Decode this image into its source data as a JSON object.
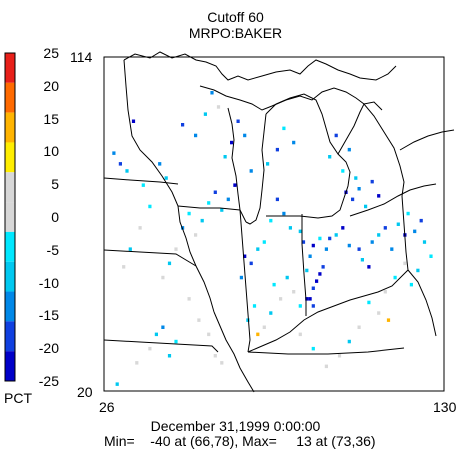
{
  "title": "Cutoff 60",
  "subtitle": "MRPO:BAKER",
  "y_axis": {
    "top": "114",
    "bottom": "20"
  },
  "x_axis": {
    "left": "26",
    "right": "130"
  },
  "footer": {
    "date": "December 31,1999 0:00:00",
    "stats": "Min=    -40 at (66,78), Max=     13 at (73,36)"
  },
  "colorbar": {
    "unit": "PCT",
    "labels": [
      "25",
      "20",
      "15",
      "10",
      "5",
      "0",
      "-5",
      "-10",
      "-15",
      "-20",
      "-25"
    ],
    "colors": [
      "#e8201a",
      "#ff6a00",
      "#ffb400",
      "#ffee00",
      "#d8d8d8",
      "#d8d8d8",
      "#00e8ff",
      "#00c8f0",
      "#0088e8",
      "#1040e0",
      "#0000c8"
    ]
  },
  "map": {
    "grid": {
      "col_range": [
        26,
        130
      ],
      "row_range": [
        20,
        114
      ]
    },
    "cells": [
      [
        88,
        46,
        "#0000c8"
      ],
      [
        89,
        46,
        "#0000c8"
      ],
      [
        90,
        44,
        "#1040e0"
      ],
      [
        90,
        49,
        "#1040e0"
      ],
      [
        91,
        51,
        "#0000c8"
      ],
      [
        92,
        53,
        "#0000c8"
      ],
      [
        93,
        55,
        "#1040e0"
      ],
      [
        88,
        54,
        "#00c8f0"
      ],
      [
        89,
        58,
        "#0088e8"
      ],
      [
        90,
        61,
        "#0000c8"
      ],
      [
        87,
        62,
        "#1040e0"
      ],
      [
        86,
        65,
        "#00c8f0"
      ],
      [
        92,
        63,
        "#00e8ff"
      ],
      [
        94,
        60,
        "#0088e8"
      ],
      [
        95,
        63,
        "#1040e0"
      ],
      [
        97,
        64,
        "#00c8f0"
      ],
      [
        99,
        66,
        "#0000c8"
      ],
      [
        101,
        61,
        "#0088e8"
      ],
      [
        104,
        60,
        "#1040e0"
      ],
      [
        105,
        57,
        "#00c8f0"
      ],
      [
        107,
        55,
        "#0000c8"
      ],
      [
        108,
        62,
        "#0088e8"
      ],
      [
        110,
        64,
        "#00c8f0"
      ],
      [
        112,
        66,
        "#1040e0"
      ],
      [
        114,
        60,
        "#0088e8"
      ],
      [
        116,
        67,
        "#00c8f0"
      ],
      [
        118,
        64,
        "#0000c8"
      ],
      [
        119,
        70,
        "#00e8ff"
      ],
      [
        121,
        65,
        "#0088e8"
      ],
      [
        123,
        68,
        "#1040e0"
      ],
      [
        124,
        62,
        "#00c8f0"
      ],
      [
        126,
        58,
        "#00e8ff"
      ],
      [
        100,
        76,
        "#0000c8"
      ],
      [
        102,
        74,
        "#1040e0"
      ],
      [
        104,
        77,
        "#0088e8"
      ],
      [
        106,
        72,
        "#00c8f0"
      ],
      [
        108,
        79,
        "#1040e0"
      ],
      [
        110,
        75,
        "#0000c8"
      ],
      [
        66,
        78,
        "#0000c8"
      ],
      [
        64,
        74,
        "#0088e8"
      ],
      [
        62,
        71,
        "#00c8f0"
      ],
      [
        60,
        76,
        "#1040e0"
      ],
      [
        58,
        73,
        "#00e8ff"
      ],
      [
        56,
        68,
        "#00c8f0"
      ],
      [
        54,
        64,
        "#d8d8d8"
      ],
      [
        52,
        70,
        "#00e8ff"
      ],
      [
        50,
        66,
        "#0088e8"
      ],
      [
        48,
        60,
        "#d8d8d8"
      ],
      [
        46,
        56,
        "#00c8f0"
      ],
      [
        44,
        52,
        "#d8d8d8"
      ],
      [
        73,
        36,
        "#ffb400"
      ],
      [
        70,
        40,
        "#00c8f0"
      ],
      [
        72,
        44,
        "#00e8ff"
      ],
      [
        75,
        38,
        "#d8d8d8"
      ],
      [
        77,
        42,
        "#00c8f0"
      ],
      [
        80,
        46,
        "#d8d8d8"
      ],
      [
        78,
        50,
        "#00e8ff"
      ],
      [
        82,
        52,
        "#00c8f0"
      ],
      [
        84,
        48,
        "#d8d8d8"
      ],
      [
        86,
        44,
        "#00e8ff"
      ],
      [
        69,
        58,
        "#0000c8"
      ],
      [
        71,
        56,
        "#1040e0"
      ],
      [
        68,
        52,
        "#0088e8"
      ],
      [
        73,
        60,
        "#00c8f0"
      ],
      [
        75,
        62,
        "#00e8ff"
      ],
      [
        52,
        46,
        "#d8d8d8"
      ],
      [
        55,
        40,
        "#d8d8d8"
      ],
      [
        58,
        36,
        "#d8d8d8"
      ],
      [
        60,
        30,
        "#d8d8d8"
      ],
      [
        62,
        28,
        "#d8d8d8"
      ],
      [
        40,
        32,
        "#d8d8d8"
      ],
      [
        36,
        28,
        "#d8d8d8"
      ],
      [
        30,
        22,
        "#00c8f0"
      ],
      [
        44,
        38,
        "#0088e8"
      ],
      [
        42,
        36,
        "#00c8f0"
      ],
      [
        48,
        34,
        "#00e8ff"
      ],
      [
        46,
        30,
        "#00c8f0"
      ],
      [
        65,
        90,
        "#0000c8"
      ],
      [
        67,
        96,
        "#1040e0"
      ],
      [
        69,
        92,
        "#0088e8"
      ],
      [
        63,
        86,
        "#00c8f0"
      ],
      [
        61,
        100,
        "#d8d8d8"
      ],
      [
        59,
        104,
        "#0088e8"
      ],
      [
        57,
        98,
        "#00c8f0"
      ],
      [
        29,
        87,
        "#0088e8"
      ],
      [
        31,
        84,
        "#1040e0"
      ],
      [
        35,
        96,
        "#0000c8"
      ],
      [
        33,
        82,
        "#00c8f0"
      ],
      [
        38,
        78,
        "#00e8ff"
      ],
      [
        71,
        82,
        "#0088e8"
      ],
      [
        76,
        84,
        "#00c8f0"
      ],
      [
        79,
        88,
        "#1040e0"
      ],
      [
        81,
        94,
        "#00e8ff"
      ],
      [
        84,
        90,
        "#0088e8"
      ],
      [
        95,
        86,
        "#00c8f0"
      ],
      [
        97,
        92,
        "#1040e0"
      ],
      [
        99,
        82,
        "#00e8ff"
      ],
      [
        101,
        88,
        "#0088e8"
      ],
      [
        103,
        80,
        "#00c8f0"
      ],
      [
        113,
        40,
        "#ffb400"
      ],
      [
        110,
        42,
        "#d8d8d8"
      ],
      [
        107,
        45,
        "#00e8ff"
      ],
      [
        104,
        38,
        "#d8d8d8"
      ],
      [
        101,
        34,
        "#00c8f0"
      ],
      [
        98,
        30,
        "#d8d8d8"
      ],
      [
        94,
        27,
        "#d8d8d8"
      ],
      [
        90,
        32,
        "#00e8ff"
      ],
      [
        86,
        36,
        "#d8d8d8"
      ],
      [
        120,
        50,
        "#00e8ff"
      ],
      [
        122,
        54,
        "#00c8f0"
      ],
      [
        118,
        56,
        "#d8d8d8"
      ],
      [
        115,
        52,
        "#00e8ff"
      ],
      [
        112,
        48,
        "#d8d8d8"
      ],
      [
        81,
        70,
        "#0088e8"
      ],
      [
        83,
        66,
        "#00c8f0"
      ],
      [
        79,
        74,
        "#1040e0"
      ],
      [
        77,
        68,
        "#00e8ff"
      ],
      [
        54,
        92,
        "#0088e8"
      ],
      [
        50,
        95,
        "#1040e0"
      ],
      [
        45,
        80,
        "#00c8f0"
      ],
      [
        43,
        84,
        "#0088e8"
      ],
      [
        40,
        72,
        "#00e8ff"
      ],
      [
        37,
        66,
        "#d8d8d8"
      ],
      [
        34,
        60,
        "#00c8f0"
      ],
      [
        32,
        55,
        "#d8d8d8"
      ]
    ]
  }
}
